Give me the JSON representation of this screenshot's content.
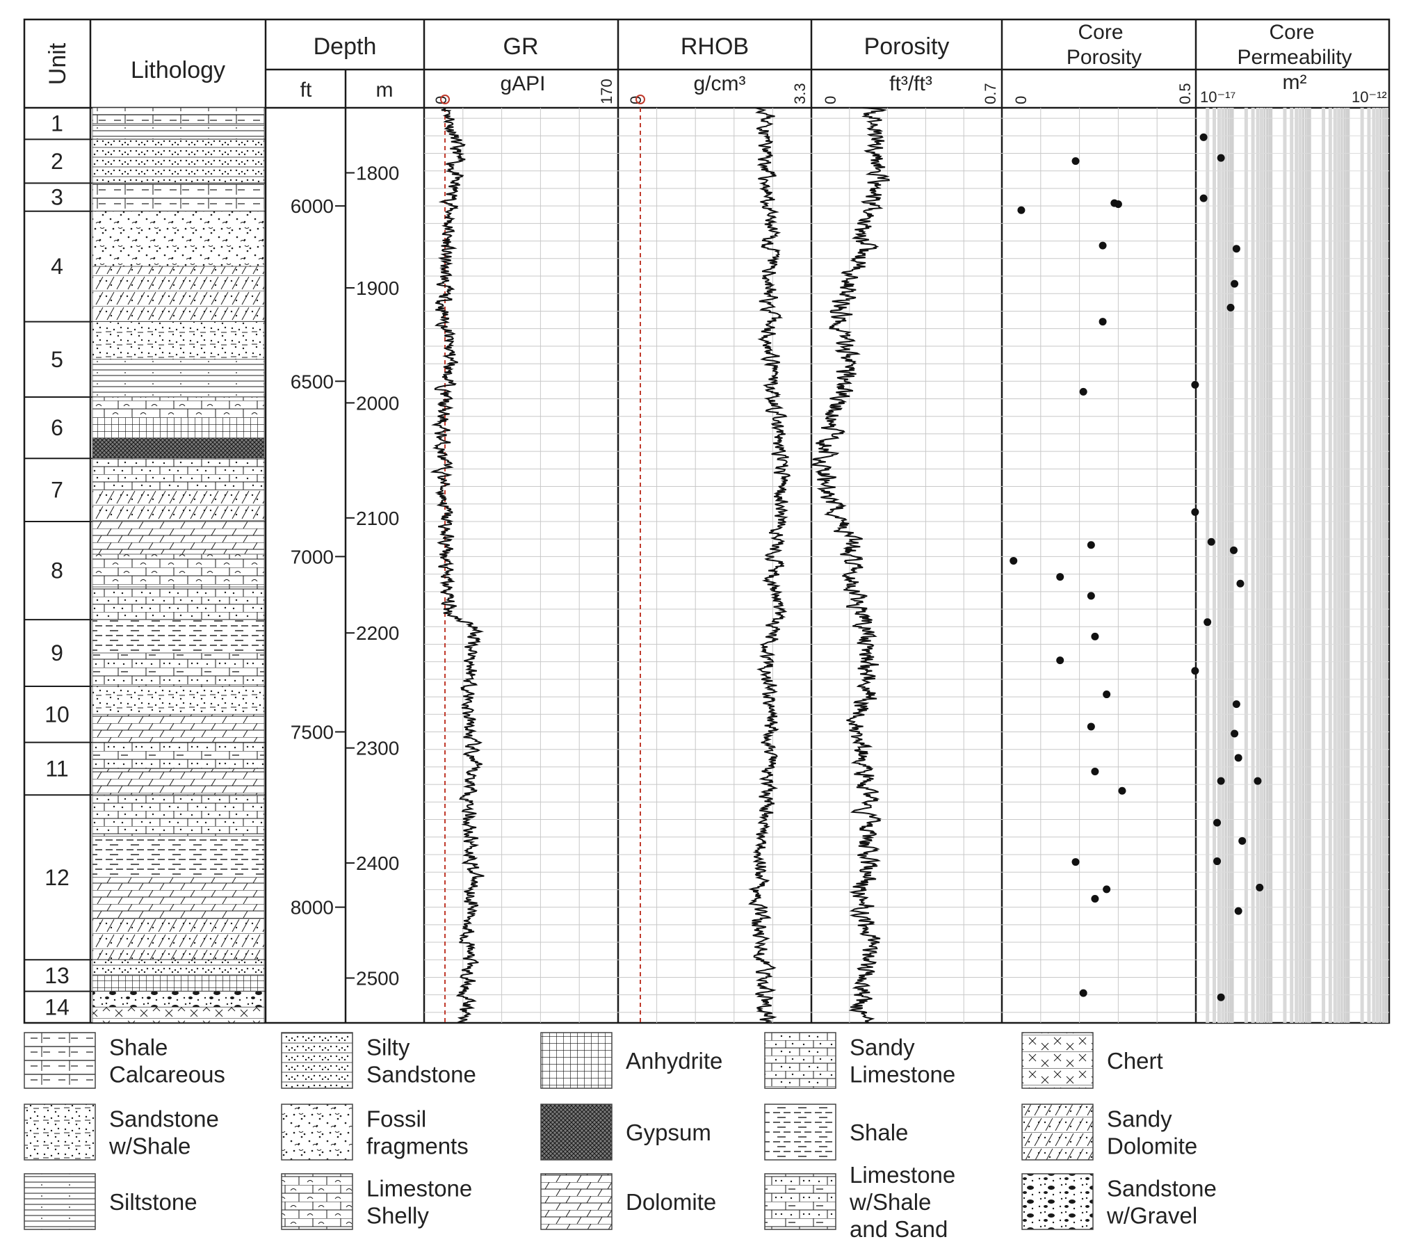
{
  "chart_data": {
    "type": "well_log",
    "columns": {
      "unit": "Unit",
      "lithology": "Lithology",
      "depth": {
        "title": "Depth",
        "ft": "ft",
        "m": "m"
      },
      "gr": {
        "title": "GR",
        "unit": "gAPI",
        "min": "0",
        "max": "170"
      },
      "rhob": {
        "title": "RHOB",
        "unit": "g/cm³",
        "min": "0",
        "max": "3.3"
      },
      "porosity": {
        "title": "Porosity",
        "unit": "ft³/ft³",
        "min": "0",
        "max": "0.7"
      },
      "core_porosity": {
        "title_1": "Core",
        "title_2": "Porosity",
        "min": "0",
        "max": "0.5"
      },
      "core_perm": {
        "title_1": "Core",
        "title_2": "Permeability",
        "unit": "m²",
        "min": "10⁻¹⁷",
        "max": "10⁻¹²"
      }
    },
    "depth_range_ft": [
      5720,
      8330
    ],
    "ft_ticks": [
      "6000",
      "6500",
      "7000",
      "7500",
      "8000"
    ],
    "m_ticks": [
      "1800",
      "1900",
      "2000",
      "2100",
      "2200",
      "2300",
      "2400",
      "2500"
    ],
    "units": [
      {
        "label": "1",
        "top_ft": 5720,
        "base_ft": 5810,
        "lith": [
          "shale_calc",
          "siltstone"
        ]
      },
      {
        "label": "2",
        "top_ft": 5810,
        "base_ft": 5935,
        "lith": [
          "silty_sandstone"
        ]
      },
      {
        "label": "3",
        "top_ft": 5935,
        "base_ft": 6015,
        "lith": [
          "shale_calc"
        ]
      },
      {
        "label": "4",
        "top_ft": 6015,
        "base_ft": 6330,
        "lith": [
          "fossil",
          "sandy_dolomite"
        ]
      },
      {
        "label": "5",
        "top_ft": 6330,
        "base_ft": 6545,
        "lith": [
          "sandstone_shale",
          "siltstone"
        ]
      },
      {
        "label": "6",
        "top_ft": 6545,
        "base_ft": 6720,
        "lith": [
          "limestone_shelly",
          "anhydrite",
          "gypsum"
        ]
      },
      {
        "label": "7",
        "top_ft": 6720,
        "base_ft": 6900,
        "lith": [
          "sandy_limestone",
          "sandy_dolomite"
        ]
      },
      {
        "label": "8",
        "top_ft": 6900,
        "base_ft": 7180,
        "lith": [
          "dolomite",
          "limestone_shelly",
          "sandy_limestone"
        ]
      },
      {
        "label": "9",
        "top_ft": 7180,
        "base_ft": 7370,
        "lith": [
          "shale",
          "limestone_shale_sand"
        ]
      },
      {
        "label": "10",
        "top_ft": 7370,
        "base_ft": 7530,
        "lith": [
          "sandstone_shale",
          "dolomite"
        ]
      },
      {
        "label": "11",
        "top_ft": 7530,
        "base_ft": 7680,
        "lith": [
          "limestone_shale_sand",
          "dolomite"
        ]
      },
      {
        "label": "12",
        "top_ft": 7680,
        "base_ft": 8150,
        "lith": [
          "sandy_limestone",
          "shale",
          "dolomite",
          "sandy_dolomite"
        ]
      },
      {
        "label": "13",
        "top_ft": 8150,
        "base_ft": 8240,
        "lith": [
          "silty_sandstone",
          "anhydrite"
        ]
      },
      {
        "label": "14",
        "top_ft": 8240,
        "base_ft": 8330,
        "lith": [
          "sandstone_gravel",
          "chert"
        ]
      }
    ],
    "gr_profile": [
      {
        "ft": 5720,
        "v": 22
      },
      {
        "ft": 5850,
        "v": 28
      },
      {
        "ft": 6000,
        "v": 24
      },
      {
        "ft": 6150,
        "v": 18
      },
      {
        "ft": 6300,
        "v": 17
      },
      {
        "ft": 6450,
        "v": 24
      },
      {
        "ft": 6600,
        "v": 15
      },
      {
        "ft": 6750,
        "v": 16
      },
      {
        "ft": 6900,
        "v": 19
      },
      {
        "ft": 7050,
        "v": 18
      },
      {
        "ft": 7160,
        "v": 22
      },
      {
        "ft": 7200,
        "v": 45
      },
      {
        "ft": 7300,
        "v": 42
      },
      {
        "ft": 7450,
        "v": 38
      },
      {
        "ft": 7600,
        "v": 42
      },
      {
        "ft": 7750,
        "v": 40
      },
      {
        "ft": 7900,
        "v": 44
      },
      {
        "ft": 8050,
        "v": 40
      },
      {
        "ft": 8200,
        "v": 38
      },
      {
        "ft": 8330,
        "v": 35
      }
    ],
    "rhob_profile": [
      {
        "ft": 5720,
        "v": 2.55
      },
      {
        "ft": 5850,
        "v": 2.52
      },
      {
        "ft": 6000,
        "v": 2.55
      },
      {
        "ft": 6150,
        "v": 2.6
      },
      {
        "ft": 6300,
        "v": 2.58
      },
      {
        "ft": 6450,
        "v": 2.6
      },
      {
        "ft": 6600,
        "v": 2.7
      },
      {
        "ft": 6750,
        "v": 2.78
      },
      {
        "ft": 6850,
        "v": 2.82
      },
      {
        "ft": 6950,
        "v": 2.7
      },
      {
        "ft": 7050,
        "v": 2.65
      },
      {
        "ft": 7150,
        "v": 2.7
      },
      {
        "ft": 7300,
        "v": 2.55
      },
      {
        "ft": 7450,
        "v": 2.6
      },
      {
        "ft": 7600,
        "v": 2.58
      },
      {
        "ft": 7750,
        "v": 2.5
      },
      {
        "ft": 7900,
        "v": 2.45
      },
      {
        "ft": 8050,
        "v": 2.4
      },
      {
        "ft": 8200,
        "v": 2.5
      },
      {
        "ft": 8330,
        "v": 2.55
      }
    ],
    "porosity_profile": [
      {
        "ft": 5720,
        "v": 0.22
      },
      {
        "ft": 5850,
        "v": 0.25
      },
      {
        "ft": 6000,
        "v": 0.22
      },
      {
        "ft": 6150,
        "v": 0.18
      },
      {
        "ft": 6300,
        "v": 0.1
      },
      {
        "ft": 6450,
        "v": 0.14
      },
      {
        "ft": 6600,
        "v": 0.08
      },
      {
        "ft": 6750,
        "v": 0.05
      },
      {
        "ft": 6850,
        "v": 0.07
      },
      {
        "ft": 6950,
        "v": 0.14
      },
      {
        "ft": 7100,
        "v": 0.15
      },
      {
        "ft": 7200,
        "v": 0.2
      },
      {
        "ft": 7350,
        "v": 0.22
      },
      {
        "ft": 7500,
        "v": 0.17
      },
      {
        "ft": 7650,
        "v": 0.2
      },
      {
        "ft": 7800,
        "v": 0.2
      },
      {
        "ft": 7950,
        "v": 0.2
      },
      {
        "ft": 8100,
        "v": 0.2
      },
      {
        "ft": 8250,
        "v": 0.19
      },
      {
        "ft": 8330,
        "v": 0.18
      }
    ],
    "core_porosity_points": [
      {
        "ft": 5872,
        "v": 0.19
      },
      {
        "ft": 6012,
        "v": 0.05
      },
      {
        "ft": 5992,
        "v": 0.29
      },
      {
        "ft": 5995,
        "v": 0.3
      },
      {
        "ft": 6113,
        "v": 0.26
      },
      {
        "ft": 6330,
        "v": 0.26
      },
      {
        "ft": 6530,
        "v": 0.21
      },
      {
        "ft": 6967,
        "v": 0.23
      },
      {
        "ft": 7012,
        "v": 0.03
      },
      {
        "ft": 7058,
        "v": 0.15
      },
      {
        "ft": 7112,
        "v": 0.23
      },
      {
        "ft": 7228,
        "v": 0.24
      },
      {
        "ft": 7296,
        "v": 0.15
      },
      {
        "ft": 7393,
        "v": 0.27
      },
      {
        "ft": 7485,
        "v": 0.23
      },
      {
        "ft": 7613,
        "v": 0.24
      },
      {
        "ft": 7668,
        "v": 0.31
      },
      {
        "ft": 7871,
        "v": 0.19
      },
      {
        "ft": 7949,
        "v": 0.27
      },
      {
        "ft": 7976,
        "v": 0.24
      },
      {
        "ft": 8245,
        "v": 0.21
      }
    ],
    "core_perm_points": [
      {
        "ft": 5804,
        "log10_m2": -16.8
      },
      {
        "ft": 5863,
        "log10_m2": -16.35
      },
      {
        "ft": 5978,
        "log10_m2": -16.8
      },
      {
        "ft": 6122,
        "log10_m2": -15.95
      },
      {
        "ft": 6222,
        "log10_m2": -16.0
      },
      {
        "ft": 6290,
        "log10_m2": -16.1
      },
      {
        "ft": 6510,
        "log10_m2": -17.02
      },
      {
        "ft": 6873,
        "log10_m2": -17.02
      },
      {
        "ft": 6958,
        "log10_m2": -16.6
      },
      {
        "ft": 6982,
        "log10_m2": -16.02
      },
      {
        "ft": 7077,
        "log10_m2": -15.85
      },
      {
        "ft": 7187,
        "log10_m2": -16.7
      },
      {
        "ft": 7326,
        "log10_m2": -17.02
      },
      {
        "ft": 7421,
        "log10_m2": -15.95
      },
      {
        "ft": 7505,
        "log10_m2": -16.0
      },
      {
        "ft": 7574,
        "log10_m2": -15.9
      },
      {
        "ft": 7640,
        "log10_m2": -16.35
      },
      {
        "ft": 7640,
        "log10_m2": -15.4
      },
      {
        "ft": 7759,
        "log10_m2": -16.45
      },
      {
        "ft": 7811,
        "log10_m2": -15.8
      },
      {
        "ft": 7869,
        "log10_m2": -16.45
      },
      {
        "ft": 7944,
        "log10_m2": -15.35
      },
      {
        "ft": 8011,
        "log10_m2": -15.9
      },
      {
        "ft": 8257,
        "log10_m2": -16.35
      }
    ],
    "legend": [
      {
        "key": "shale_calc",
        "label_1": "Shale",
        "label_2": "Calcareous"
      },
      {
        "key": "silty_sandstone",
        "label_1": "Silty",
        "label_2": "Sandstone"
      },
      {
        "key": "anhydrite",
        "label_1": "Anhydrite",
        "label_2": ""
      },
      {
        "key": "sandy_limestone",
        "label_1": "Sandy",
        "label_2": "Limestone"
      },
      {
        "key": "chert",
        "label_1": "Chert",
        "label_2": ""
      },
      {
        "key": "sandstone_shale",
        "label_1": "Sandstone",
        "label_2": "w/Shale"
      },
      {
        "key": "fossil",
        "label_1": "Fossil",
        "label_2": "fragments"
      },
      {
        "key": "gypsum",
        "label_1": "Gypsum",
        "label_2": ""
      },
      {
        "key": "shale",
        "label_1": "Shale",
        "label_2": ""
      },
      {
        "key": "sandy_dolomite",
        "label_1": "Sandy",
        "label_2": "Dolomite"
      },
      {
        "key": "siltstone",
        "label_1": "Siltstone",
        "label_2": ""
      },
      {
        "key": "limestone_shelly",
        "label_1": "Limestone",
        "label_2": "Shelly"
      },
      {
        "key": "dolomite",
        "label_1": "Dolomite",
        "label_2": ""
      },
      {
        "key": "limestone_shale_sand",
        "label_1": "Limestone",
        "label_2": "w/Shale",
        "label_3": "and Sand"
      },
      {
        "key": "sandstone_gravel",
        "label_1": "Sandstone",
        "label_2": "w/Gravel"
      }
    ],
    "colors": {
      "ink": "#1a1a1a",
      "grid": "#c8c8c8",
      "zero_line": "#c0392b",
      "perm_band": "#d9d9d9"
    }
  }
}
